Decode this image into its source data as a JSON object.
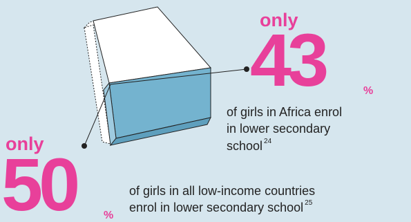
{
  "stats": [
    {
      "prefix": "only",
      "value": "43",
      "unit": "%",
      "lines": [
        "of girls in Africa enrol",
        "in lower secondary",
        "school"
      ],
      "note": "24"
    },
    {
      "prefix": "only",
      "value": "50",
      "unit": "%",
      "lines": [
        "of girls in all low-income countries",
        "enrol in lower secondary school"
      ],
      "note": "25"
    }
  ]
}
